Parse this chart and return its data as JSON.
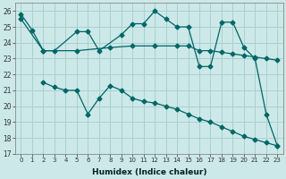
{
  "xlabel": "Humidex (Indice chaleur)",
  "bg_color": "#cce8e8",
  "grid_color": "#aad0d0",
  "line_color": "#006666",
  "ylim": [
    17,
    26.5
  ],
  "xlim": [
    -0.5,
    23.5
  ],
  "yticks": [
    17,
    18,
    19,
    20,
    21,
    22,
    23,
    24,
    25,
    26
  ],
  "xticks": [
    0,
    1,
    2,
    3,
    4,
    5,
    6,
    7,
    8,
    9,
    10,
    11,
    12,
    13,
    14,
    15,
    16,
    17,
    18,
    19,
    20,
    21,
    22,
    23
  ],
  "line1_x": [
    0,
    1,
    2,
    3,
    5,
    6,
    7,
    9,
    10,
    11,
    12,
    13,
    14,
    15,
    16,
    17,
    18,
    19,
    20,
    21,
    22,
    23
  ],
  "line1_y": [
    25.8,
    24.8,
    23.5,
    23.5,
    24.7,
    24.7,
    23.5,
    24.5,
    25.2,
    25.2,
    26.0,
    25.5,
    25.0,
    25.0,
    22.5,
    22.5,
    25.3,
    25.3,
    23.7,
    23.0,
    19.5,
    17.5
  ],
  "line2_x": [
    0,
    2,
    5,
    8,
    10,
    12,
    14,
    15,
    16,
    17,
    18,
    19,
    20,
    21,
    22,
    23
  ],
  "line2_y": [
    25.5,
    23.5,
    23.5,
    23.7,
    23.8,
    23.8,
    23.8,
    23.8,
    23.5,
    23.5,
    23.4,
    23.3,
    23.2,
    23.1,
    23.0,
    22.9
  ],
  "line3_x": [
    2,
    3,
    4,
    5,
    6,
    7,
    8,
    9,
    10,
    11,
    12,
    13,
    14,
    15,
    16,
    17,
    18,
    19,
    20,
    21,
    22,
    23
  ],
  "line3_y": [
    21.5,
    21.2,
    21.0,
    21.0,
    19.5,
    20.5,
    21.3,
    21.0,
    20.5,
    20.3,
    20.2,
    20.0,
    19.8,
    19.5,
    19.2,
    19.0,
    18.7,
    18.4,
    18.1,
    17.9,
    17.7,
    17.5
  ]
}
